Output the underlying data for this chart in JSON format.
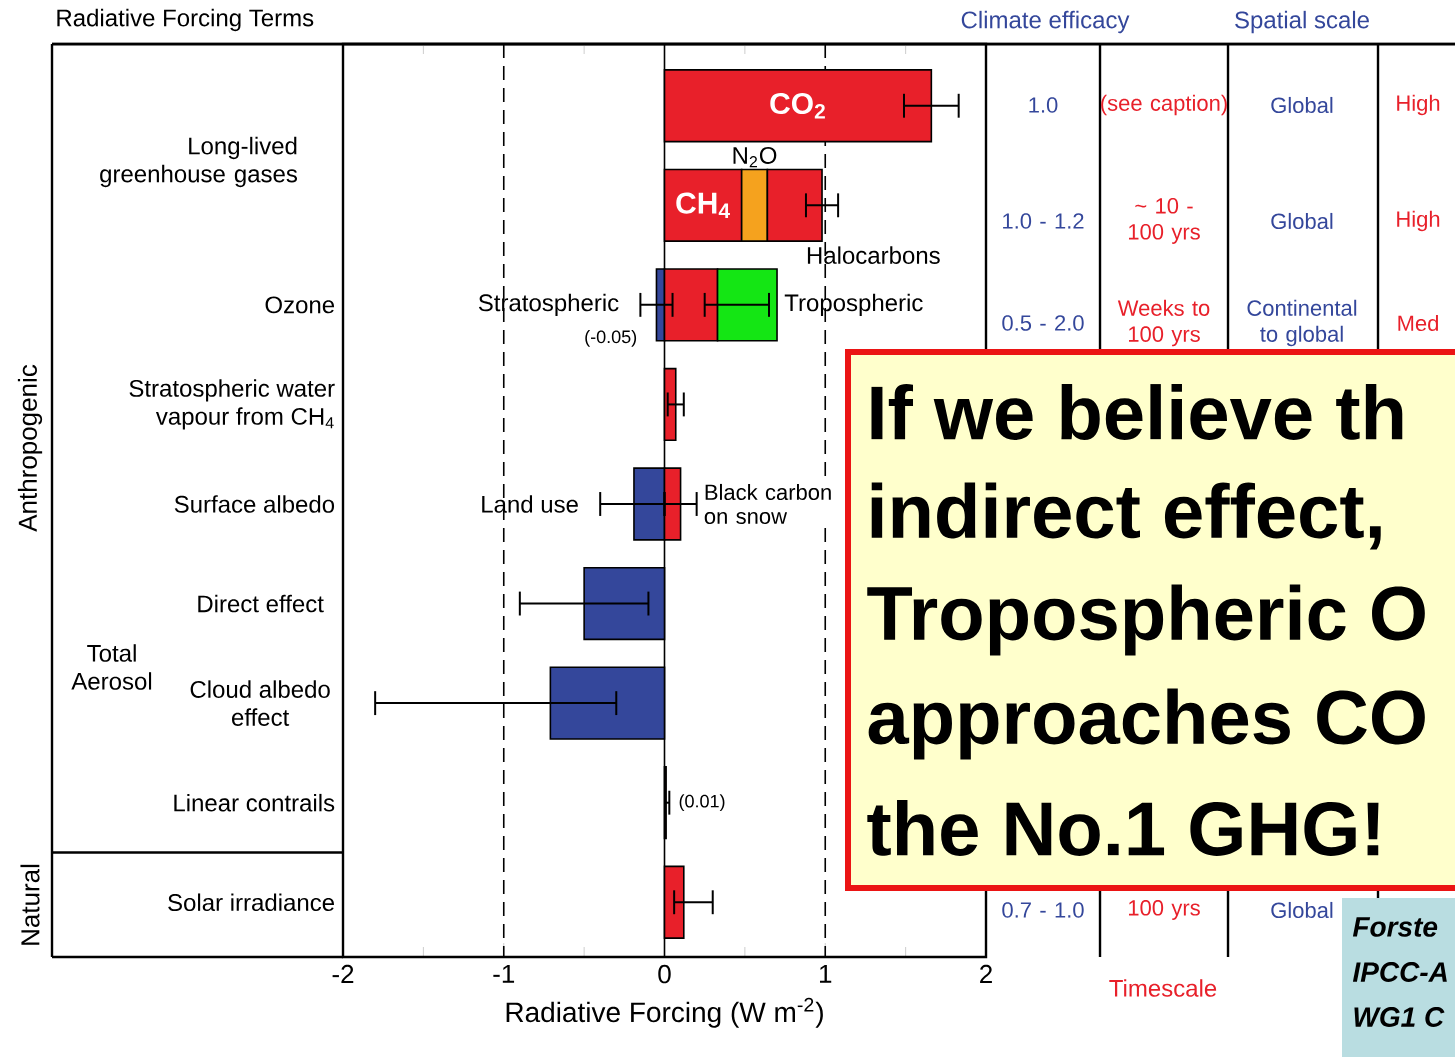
{
  "chart_data": {
    "type": "bar",
    "orientation": "horizontal",
    "title": "Radiative Forcing Terms",
    "xlabel": "Radiative Forcing  (W m$^{-2}$)",
    "categories": [
      null,
      null,
      "Ozone",
      "Stratospheric water vapour from CH$_{4}$",
      "Surface albedo",
      "Direct effect",
      "Cloud albedo effect",
      "Linear  contrails",
      "Solar irradiance"
    ],
    "xlim": [
      -2,
      2
    ],
    "xticks": [
      -2,
      -1,
      0,
      1,
      2
    ],
    "ref_lines": [
      {
        "axis": "x",
        "value": -1,
        "line_style": "dashed",
        "color": "#000000"
      },
      {
        "axis": "x",
        "value": 0,
        "line_style": "solid",
        "color": "#000000"
      },
      {
        "axis": "x",
        "value": 1,
        "line_style": "dashed",
        "color": "#000000"
      }
    ],
    "series": [
      {
        "name": "CO$_{2}$",
        "color": "#e8202a",
        "values": [
          1.66,
          null,
          null,
          null,
          null,
          null,
          null,
          null,
          null
        ],
        "base": [
          0,
          null,
          null,
          null,
          null,
          null,
          null,
          null,
          null
        ],
        "errors": [
          [
            1.49,
            1.83
          ],
          null,
          null,
          null,
          null,
          null,
          null,
          null,
          null
        ]
      },
      {
        "name": "CH$_{4}$",
        "color": "#e8202a",
        "values": [
          null,
          0.48,
          null,
          null,
          null,
          null,
          null,
          null,
          null
        ],
        "base": [
          null,
          0,
          null,
          null,
          null,
          null,
          null,
          null,
          null
        ]
      },
      {
        "name": "N$_{2}$O",
        "color": "#f5a21e",
        "values": [
          null,
          0.16,
          null,
          null,
          null,
          null,
          null,
          null,
          null
        ],
        "base": [
          null,
          0.48,
          null,
          null,
          null,
          null,
          null,
          null,
          null
        ]
      },
      {
        "name": "Halocarbons",
        "color": "#e8202a",
        "values": [
          null,
          0.34,
          null,
          null,
          null,
          null,
          null,
          null,
          null
        ],
        "base": [
          null,
          0.64,
          null,
          null,
          null,
          null,
          null,
          null,
          null
        ],
        "errors": [
          null,
          [
            0.88,
            1.08
          ],
          null,
          null,
          null,
          null,
          null,
          null,
          null
        ]
      },
      {
        "name": "Stratospheric",
        "color": "#34479b",
        "values": [
          null,
          null,
          -0.05,
          null,
          null,
          null,
          null,
          null,
          null
        ],
        "base": [
          null,
          null,
          0,
          null,
          null,
          null,
          null,
          null,
          null
        ],
        "errors": [
          null,
          null,
          [
            -0.15,
            0.05
          ],
          null,
          null,
          null,
          null,
          null,
          null
        ],
        "value_labels": [
          null,
          null,
          "(-0.05)",
          null,
          null,
          null,
          null,
          null,
          null
        ]
      },
      {
        "color": "#e8202a",
        "values": [
          null,
          null,
          0.33,
          null,
          null,
          null,
          null,
          null,
          null
        ],
        "base": [
          null,
          null,
          0,
          null,
          null,
          null,
          null,
          null,
          null
        ],
        "errors": [
          null,
          null,
          [
            0.25,
            0.65
          ],
          null,
          null,
          null,
          null,
          null,
          null
        ]
      },
      {
        "name": "Tropospheric",
        "color": "#14e614",
        "values": [
          null,
          null,
          0.37,
          null,
          null,
          null,
          null,
          null,
          null
        ],
        "base": [
          null,
          null,
          0.33,
          null,
          null,
          null,
          null,
          null,
          null
        ]
      },
      {
        "color": "#e8202a",
        "values": [
          null,
          null,
          null,
          0.07,
          null,
          null,
          null,
          0.01,
          0.12
        ],
        "base": [
          null,
          null,
          null,
          0,
          null,
          null,
          null,
          0,
          0
        ],
        "errors": [
          null,
          null,
          null,
          [
            0.02,
            0.12
          ],
          null,
          null,
          null,
          [
            0.003,
            0.03
          ],
          [
            0.06,
            0.3
          ]
        ],
        "value_labels": [
          null,
          null,
          null,
          null,
          null,
          null,
          null,
          "(0.01)",
          null
        ]
      },
      {
        "name": "Land use",
        "color": "#34479b",
        "values": [
          null,
          null,
          null,
          null,
          -0.19,
          null,
          null,
          null,
          null
        ],
        "base": [
          null,
          null,
          null,
          null,
          0,
          null,
          null,
          null,
          null
        ],
        "errors": [
          null,
          null,
          null,
          null,
          [
            -0.4,
            0
          ],
          null,
          null,
          null,
          null
        ]
      },
      {
        "name": "Black carbon on snow",
        "color": "#e8202a",
        "values": [
          null,
          null,
          null,
          null,
          0.1,
          null,
          null,
          null,
          null
        ],
        "base": [
          null,
          null,
          null,
          null,
          0,
          null,
          null,
          null,
          null
        ],
        "errors": [
          null,
          null,
          null,
          null,
          [
            0,
            0.2
          ],
          null,
          null,
          null,
          null
        ]
      },
      {
        "color": "#34479b",
        "values": [
          null,
          null,
          null,
          null,
          null,
          -0.5,
          -0.71,
          null,
          null
        ],
        "base": [
          null,
          null,
          null,
          null,
          null,
          0,
          0,
          null,
          null
        ],
        "errors": [
          null,
          null,
          null,
          null,
          null,
          [
            -0.9,
            -0.1
          ],
          [
            -1.8,
            -0.3
          ],
          null,
          null
        ]
      }
    ],
    "annotations": [
      "Long-lived greenhouse gases",
      "Total Aerosol",
      "Anthropogenic",
      "Natural",
      "Climate efficacy",
      "Spatial scale",
      "Timescale",
      "1.0",
      "(see caption)",
      "Global",
      "High",
      "1.0 - 1.2",
      "~ 10 - 100 yrs",
      "Global",
      "High",
      "0.5 - 2.0",
      "Weeks to 100 yrs",
      "Continental to global",
      "Med",
      "0.7 - 1.0",
      "100 yrs",
      "Global",
      "If we believe th",
      "indirect effect,",
      "Tropospheric O",
      "approaches CO",
      "the No.1 GHG!",
      "Forste",
      "IPCC-A",
      "WG1 C"
    ]
  }
}
